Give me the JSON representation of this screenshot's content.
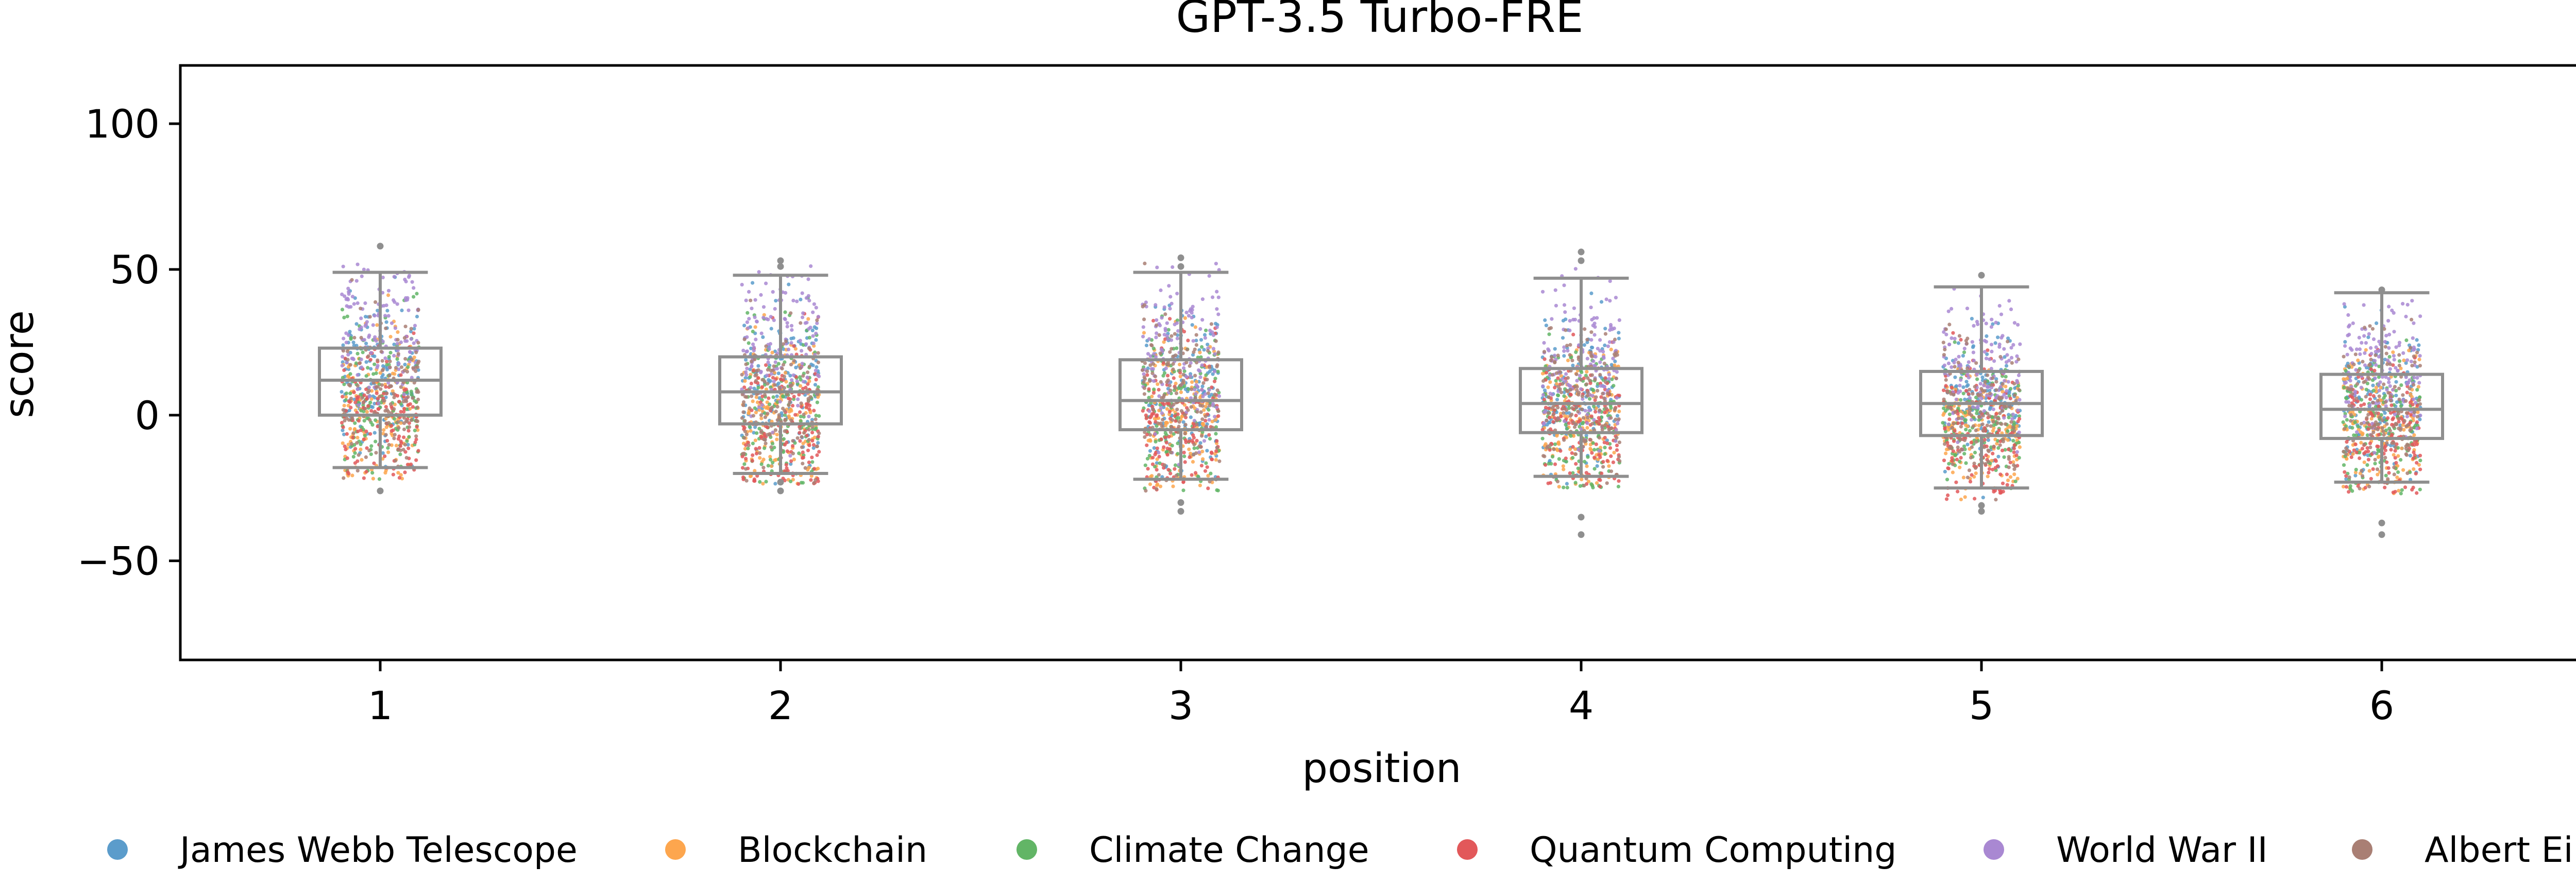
{
  "chart_data": {
    "type": "scatter",
    "title": "GPT-3.5 Turbo-FRE",
    "xlabel": "position",
    "ylabel": "score",
    "ylim": [
      -84,
      120
    ],
    "yticks": [
      -50,
      0,
      50,
      100
    ],
    "ytick_labels": [
      "−50",
      "0",
      "50",
      "100"
    ],
    "categories": [
      "1",
      "2",
      "3",
      "4",
      "5",
      "6"
    ],
    "grid": false,
    "legend_position": "bottom",
    "series": [
      {
        "name": "James Webb Telescope",
        "color": "#5b9ccb",
        "center_y": [
          12,
          9,
          8,
          6,
          5,
          4
        ]
      },
      {
        "name": "Blockchain",
        "color": "#fda64e",
        "center_y": [
          2,
          -2,
          -2,
          -3,
          -5,
          -4
        ]
      },
      {
        "name": "Climate Change",
        "color": "#62b566",
        "center_y": [
          4,
          1,
          0,
          -1,
          -2,
          -3
        ]
      },
      {
        "name": "Quantum Computing",
        "color": "#e2585a",
        "center_y": [
          0,
          -3,
          -3,
          -4,
          -6,
          -5
        ]
      },
      {
        "name": "World War II",
        "color": "#a988d2",
        "center_y": [
          28,
          24,
          22,
          18,
          16,
          15
        ]
      },
      {
        "name": "Albert Einstein",
        "color": "#a97f74",
        "center_y": [
          8,
          5,
          5,
          3,
          2,
          2
        ]
      }
    ],
    "boxplots": [
      {
        "position": "1",
        "whisker_low": -18,
        "q1": 0,
        "median": 12,
        "q3": 23,
        "whisker_high": 49,
        "outliers": [
          58,
          -26
        ]
      },
      {
        "position": "2",
        "whisker_low": -20,
        "q1": -3,
        "median": 8,
        "q3": 20,
        "whisker_high": 48,
        "outliers": [
          53,
          51,
          -23,
          -26
        ]
      },
      {
        "position": "3",
        "whisker_low": -22,
        "q1": -5,
        "median": 5,
        "q3": 19,
        "whisker_high": 49,
        "outliers": [
          54,
          51,
          -30,
          -33
        ]
      },
      {
        "position": "4",
        "whisker_low": -21,
        "q1": -6,
        "median": 4,
        "q3": 16,
        "whisker_high": 47,
        "outliers": [
          56,
          53,
          -35,
          -41
        ]
      },
      {
        "position": "5",
        "whisker_low": -25,
        "q1": -7,
        "median": 4,
        "q3": 15,
        "whisker_high": 44,
        "outliers": [
          48,
          -31,
          -33
        ]
      },
      {
        "position": "6",
        "whisker_low": -23,
        "q1": -8,
        "median": 2,
        "q3": 14,
        "whisker_high": 42,
        "outliers": [
          43,
          -37,
          -41
        ]
      }
    ]
  }
}
